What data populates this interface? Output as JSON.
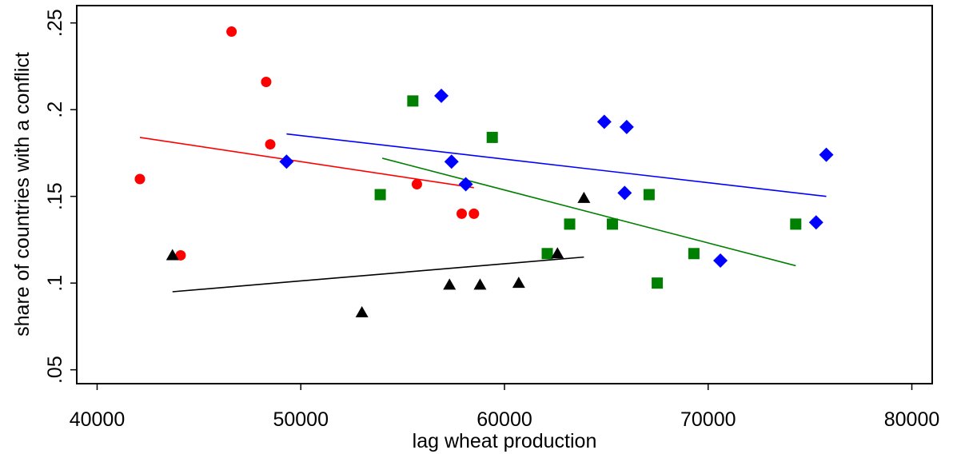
{
  "chart_data": {
    "type": "scatter",
    "title": "",
    "xlabel": "lag wheat production",
    "ylabel": "share of countries with a conflict",
    "xlim": [
      39000,
      81000
    ],
    "ylim": [
      0.042,
      0.26
    ],
    "x_ticks": [
      40000,
      50000,
      60000,
      70000,
      80000
    ],
    "x_tick_labels": [
      "40000",
      "50000",
      "60000",
      "70000",
      "80000"
    ],
    "y_ticks": [
      0.05,
      0.1,
      0.15,
      0.2,
      0.25
    ],
    "y_tick_labels": [
      ".05",
      ".1",
      ".15",
      ".2",
      ".25"
    ],
    "grid": false,
    "legend": "none",
    "series": [
      {
        "marker": "circle",
        "color": "#ff0000",
        "points": [
          [
            42100,
            0.16
          ],
          [
            44100,
            0.116
          ],
          [
            46600,
            0.245
          ],
          [
            48300,
            0.216
          ],
          [
            48500,
            0.18
          ],
          [
            55700,
            0.157
          ],
          [
            57900,
            0.14
          ],
          [
            58500,
            0.14
          ]
        ],
        "fit": [
          [
            42100,
            0.184
          ],
          [
            58500,
            0.155
          ]
        ]
      },
      {
        "marker": "diamond",
        "color": "#0000ff",
        "points": [
          [
            49300,
            0.17
          ],
          [
            56900,
            0.208
          ],
          [
            57400,
            0.17
          ],
          [
            58100,
            0.157
          ],
          [
            64900,
            0.193
          ],
          [
            65900,
            0.152
          ],
          [
            66000,
            0.19
          ],
          [
            70600,
            0.113
          ],
          [
            75300,
            0.135
          ],
          [
            75800,
            0.174
          ]
        ],
        "fit": [
          [
            49300,
            0.186
          ],
          [
            75800,
            0.15
          ]
        ]
      },
      {
        "marker": "square",
        "color": "#008000",
        "points": [
          [
            53900,
            0.151
          ],
          [
            55500,
            0.205
          ],
          [
            59400,
            0.184
          ],
          [
            62100,
            0.117
          ],
          [
            63200,
            0.134
          ],
          [
            65300,
            0.134
          ],
          [
            67100,
            0.151
          ],
          [
            67500,
            0.1
          ],
          [
            69300,
            0.117
          ],
          [
            74300,
            0.134
          ]
        ],
        "fit": [
          [
            54000,
            0.172
          ],
          [
            74300,
            0.11
          ]
        ]
      },
      {
        "marker": "triangle",
        "color": "#000000",
        "points": [
          [
            43700,
            0.116
          ],
          [
            53000,
            0.083
          ],
          [
            57300,
            0.099
          ],
          [
            58800,
            0.099
          ],
          [
            60700,
            0.1
          ],
          [
            62600,
            0.117
          ],
          [
            63900,
            0.149
          ]
        ],
        "fit": [
          [
            43700,
            0.095
          ],
          [
            63900,
            0.115
          ]
        ]
      }
    ]
  }
}
